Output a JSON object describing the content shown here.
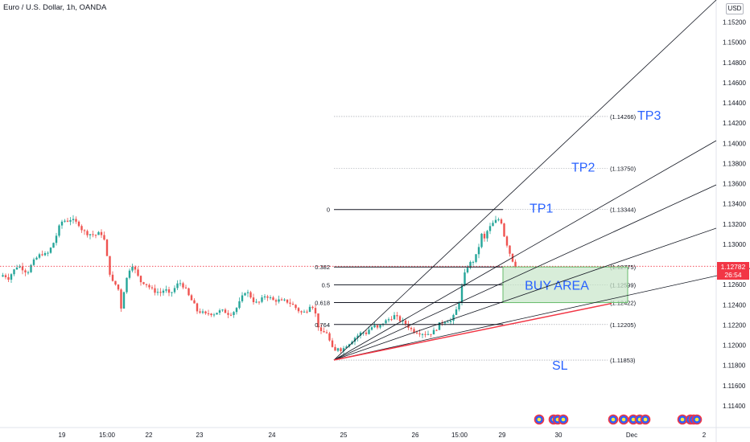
{
  "header": {
    "title": "Euro / U.S. Dollar, 1h, OANDA",
    "currency_button": "USD"
  },
  "price_tag": {
    "price": "1.12782",
    "countdown": "26:54"
  },
  "colors": {
    "up": "#26a69a",
    "down": "#ef5350",
    "buy_area_fill": "#c8e6c9",
    "buy_area_border": "#66bb6a",
    "label_blue": "#2962ff",
    "stop_line": "#f23645"
  },
  "chart_data": {
    "type": "candlestick",
    "y_axis": {
      "range": [
        1.1128,
        1.1538
      ],
      "ticks": [
        "1.11400",
        "1.11600",
        "1.11800",
        "1.12000",
        "1.12200",
        "1.12400",
        "1.12600",
        "1.12800",
        "1.13000",
        "1.13200",
        "1.13400",
        "1.13600",
        "1.13800",
        "1.14000",
        "1.14200",
        "1.14400",
        "1.14600",
        "1.14800",
        "1.15000",
        "1.15200"
      ],
      "top_partial_label": "0"
    },
    "x_axis": {
      "ticks": [
        "19",
        "15:00",
        "22",
        "23",
        "24",
        "25",
        "26",
        "15:00",
        "29",
        "30",
        "Dec",
        "2"
      ]
    },
    "current_price": 1.12782,
    "fibonacci": [
      {
        "ratio": "0",
        "price": "(1.13344)",
        "value": 1.13344
      },
      {
        "ratio": "0.382",
        "price": "(1.12775)",
        "value": 1.12775
      },
      {
        "ratio": "0.5",
        "price": "(1.12599)",
        "value": 1.12599
      },
      {
        "ratio": "0.618",
        "price": "(1.12422)",
        "value": 1.12422
      },
      {
        "ratio": "0.764",
        "price": "(1.12205)",
        "value": 1.12205
      }
    ],
    "levels": [
      {
        "label": "TP3",
        "price": "(1.14266)",
        "value": 1.14266
      },
      {
        "label": "TP2",
        "price": "(1.13750)",
        "value": 1.1375
      },
      {
        "label": "TP1",
        "price": "",
        "value": 1.13344
      },
      {
        "label": "SL",
        "price": "(1.11853)",
        "value": 1.11853
      }
    ],
    "buy_area": {
      "label": "BUY AREA",
      "top": 1.12775,
      "bottom": 1.12422
    },
    "close_path": [
      [
        0,
        1.1268
      ],
      [
        5,
        1.127
      ],
      [
        10,
        1.1266
      ],
      [
        16,
        1.1273
      ],
      [
        22,
        1.1279
      ],
      [
        28,
        1.1276
      ],
      [
        34,
        1.1272
      ],
      [
        40,
        1.1281
      ],
      [
        46,
        1.1287
      ],
      [
        52,
        1.1291
      ],
      [
        58,
        1.1289
      ],
      [
        63,
        1.1296
      ],
      [
        68,
        1.1304
      ],
      [
        73,
        1.1316
      ],
      [
        78,
        1.1324
      ],
      [
        83,
        1.1323
      ],
      [
        88,
        1.1325
      ],
      [
        93,
        1.1322
      ],
      [
        98,
        1.132
      ],
      [
        103,
        1.1313
      ],
      [
        108,
        1.1311
      ],
      [
        113,
        1.131
      ],
      [
        118,
        1.1309
      ],
      [
        124,
        1.1311
      ],
      [
        128,
        1.131
      ],
      [
        131,
        1.1298
      ],
      [
        135,
        1.1276
      ],
      [
        139,
        1.1264
      ],
      [
        142,
        1.1259
      ],
      [
        146,
        1.1262
      ],
      [
        150,
        1.1235
      ],
      [
        154,
        1.1254
      ],
      [
        158,
        1.1268
      ],
      [
        162,
        1.1278
      ],
      [
        165,
        1.128
      ],
      [
        170,
        1.127
      ],
      [
        175,
        1.1263
      ],
      [
        180,
        1.1262
      ],
      [
        185,
        1.1258
      ],
      [
        190,
        1.1254
      ],
      [
        195,
        1.1253
      ],
      [
        200,
        1.1252
      ],
      [
        205,
        1.1256
      ],
      [
        210,
        1.125
      ],
      [
        215,
        1.1254
      ],
      [
        220,
        1.126
      ],
      [
        225,
        1.1262
      ],
      [
        230,
        1.1256
      ],
      [
        235,
        1.1248
      ],
      [
        240,
        1.1242
      ],
      [
        245,
        1.1234
      ],
      [
        250,
        1.1233
      ],
      [
        255,
        1.123
      ],
      [
        260,
        1.1232
      ],
      [
        265,
        1.1231
      ],
      [
        270,
        1.1233
      ],
      [
        275,
        1.1234
      ],
      [
        280,
        1.1233
      ],
      [
        285,
        1.1231
      ],
      [
        290,
        1.1233
      ],
      [
        295,
        1.1238
      ],
      [
        300,
        1.1246
      ],
      [
        305,
        1.1254
      ],
      [
        310,
        1.125
      ],
      [
        315,
        1.1244
      ],
      [
        320,
        1.1241
      ],
      [
        325,
        1.1245
      ],
      [
        330,
        1.125
      ],
      [
        335,
        1.1247
      ],
      [
        340,
        1.1244
      ],
      [
        345,
        1.1245
      ],
      [
        350,
        1.1243
      ],
      [
        355,
        1.1244
      ],
      [
        360,
        1.1242
      ],
      [
        365,
        1.1239
      ],
      [
        370,
        1.1235
      ],
      [
        375,
        1.1232
      ],
      [
        380,
        1.1233
      ],
      [
        385,
        1.124
      ],
      [
        390,
        1.1238
      ],
      [
        395,
        1.122
      ],
      [
        400,
        1.121
      ],
      [
        405,
        1.1215
      ],
      [
        410,
        1.1203
      ],
      [
        415,
        1.1192
      ],
      [
        420,
        1.1198
      ],
      [
        425,
        1.1195
      ],
      [
        430,
        1.12
      ],
      [
        435,
        1.1203
      ],
      [
        440,
        1.1207
      ],
      [
        445,
        1.121
      ],
      [
        450,
        1.1213
      ],
      [
        455,
        1.1212
      ],
      [
        460,
        1.1217
      ],
      [
        465,
        1.1219
      ],
      [
        470,
        1.1216
      ],
      [
        475,
        1.1222
      ],
      [
        480,
        1.1224
      ],
      [
        485,
        1.1227
      ],
      [
        490,
        1.1229
      ],
      [
        495,
        1.1226
      ],
      [
        500,
        1.1223
      ],
      [
        505,
        1.1221
      ],
      [
        510,
        1.1216
      ],
      [
        515,
        1.1214
      ],
      [
        520,
        1.1213
      ],
      [
        525,
        1.1212
      ],
      [
        530,
        1.1211
      ],
      [
        535,
        1.1212
      ],
      [
        540,
        1.1214
      ],
      [
        545,
        1.122
      ],
      [
        550,
        1.1223
      ],
      [
        555,
        1.1225
      ],
      [
        560,
        1.1224
      ],
      [
        565,
        1.123
      ],
      [
        570,
        1.1242
      ],
      [
        574,
        1.1258
      ],
      [
        578,
        1.1272
      ],
      [
        582,
        1.128
      ],
      [
        586,
        1.1282
      ],
      [
        590,
        1.1285
      ],
      [
        594,
        1.1294
      ],
      [
        598,
        1.131
      ],
      [
        602,
        1.1305
      ],
      [
        606,
        1.1314
      ],
      [
        610,
        1.1318
      ],
      [
        614,
        1.1322
      ],
      [
        618,
        1.1324
      ],
      [
        622,
        1.1326
      ],
      [
        626,
        1.131
      ],
      [
        630,
        1.13
      ],
      [
        634,
        1.129
      ],
      [
        638,
        1.1282
      ],
      [
        641,
        1.12782
      ]
    ]
  }
}
